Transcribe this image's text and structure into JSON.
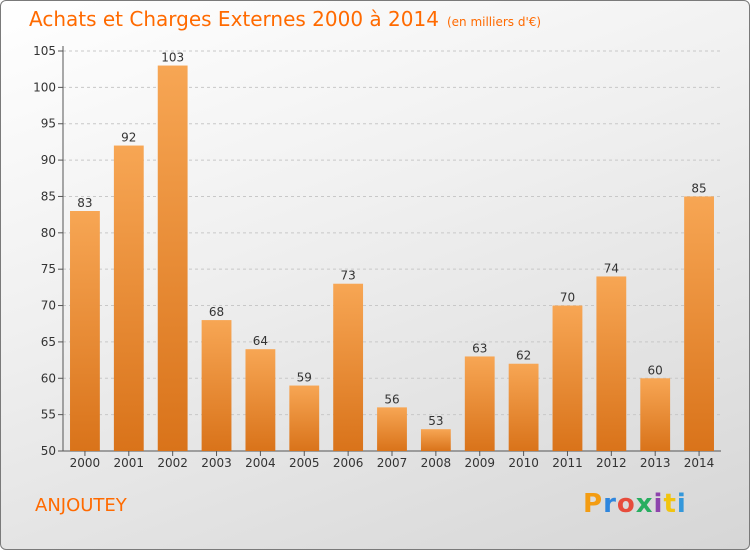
{
  "title": "Achats et Charges Externes 2000 à 2014",
  "title_unit": "(en milliers d'€)",
  "location": "ANJOUTEY",
  "logo_text": "Proxiti",
  "chart_data": {
    "type": "bar",
    "categories": [
      "2000",
      "2001",
      "2002",
      "2003",
      "2004",
      "2005",
      "2006",
      "2007",
      "2008",
      "2009",
      "2010",
      "2011",
      "2012",
      "2013",
      "2014"
    ],
    "values": [
      83,
      92,
      103,
      68,
      64,
      59,
      73,
      56,
      53,
      63,
      62,
      70,
      74,
      60,
      85
    ],
    "ylim": [
      50,
      105
    ],
    "yticks": [
      50,
      55,
      60,
      65,
      70,
      75,
      80,
      85,
      90,
      95,
      100,
      105
    ],
    "bar_color": "#f39c45",
    "grid": true,
    "data_labels": true
  }
}
